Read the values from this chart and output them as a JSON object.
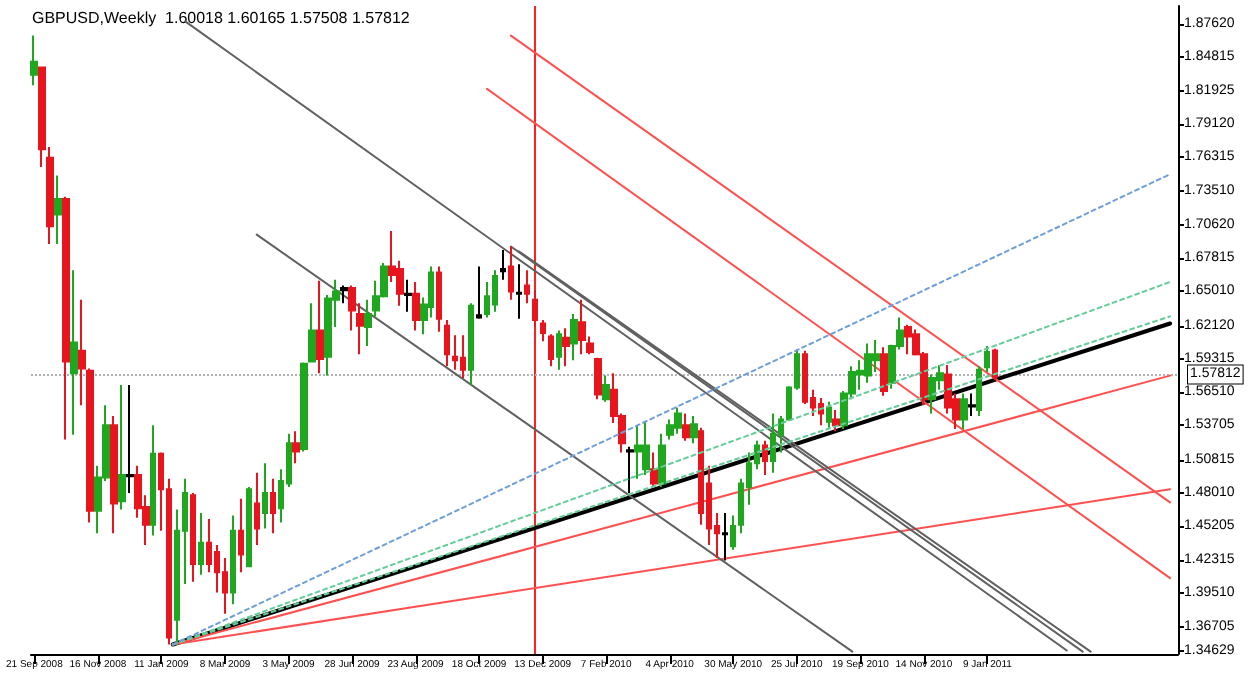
{
  "chart_data": {
    "type": "candlestick",
    "title": "GBPUSD,Weekly  1.60018 1.60165 1.57508 1.57812",
    "xlim": [
      "2008-09-18",
      "2011-06-26"
    ],
    "xticks": [
      {
        "value": "2008-09-21",
        "label": "21 Sep 2008"
      },
      {
        "value": "2008-11-16",
        "label": "16 Nov 2008"
      },
      {
        "value": "2009-01-11",
        "label": "11 Jan 2009"
      },
      {
        "value": "2009-03-08",
        "label": "8 Mar 2009"
      },
      {
        "value": "2009-05-03",
        "label": "3 May 2009"
      },
      {
        "value": "2009-06-28",
        "label": "28 Jun 2009"
      },
      {
        "value": "2009-08-23",
        "label": "23 Aug 2009"
      },
      {
        "value": "2009-10-18",
        "label": "18 Oct 2009"
      },
      {
        "value": "2009-12-13",
        "label": "13 Dec 2009"
      },
      {
        "value": "2010-02-07",
        "label": "7 Feb 2010"
      },
      {
        "value": "2010-04-04",
        "label": "4 Apr 2010"
      },
      {
        "value": "2010-05-30",
        "label": "30 May 2010"
      },
      {
        "value": "2010-07-25",
        "label": "25 Jul 2010"
      },
      {
        "value": "2010-09-19",
        "label": "19 Sep 2010"
      },
      {
        "value": "2010-11-14",
        "label": "14 Nov 2010"
      },
      {
        "value": "2011-01-09",
        "label": "9 Jan 2011"
      }
    ],
    "ylim": [
      1.344,
      1.891
    ],
    "yticks": [
      {
        "value": 1.34629,
        "label": "1.34629"
      },
      {
        "value": 1.36705,
        "label": "1.36705"
      },
      {
        "value": 1.3951,
        "label": "1.39510"
      },
      {
        "value": 1.42315,
        "label": "1.42315"
      },
      {
        "value": 1.45205,
        "label": "1.45205"
      },
      {
        "value": 1.4801,
        "label": "1.48010"
      },
      {
        "value": 1.50815,
        "label": "1.50815"
      },
      {
        "value": 1.53705,
        "label": "1.53705"
      },
      {
        "value": 1.5651,
        "label": "1.56510"
      },
      {
        "value": 1.59315,
        "label": "1.59315"
      },
      {
        "value": 1.6212,
        "label": "1.62120"
      },
      {
        "value": 1.6501,
        "label": "1.65010"
      },
      {
        "value": 1.67815,
        "label": "1.67815"
      },
      {
        "value": 1.7062,
        "label": "1.70620"
      },
      {
        "value": 1.7351,
        "label": "1.73510"
      },
      {
        "value": 1.76315,
        "label": "1.76315"
      },
      {
        "value": 1.7912,
        "label": "1.79120"
      },
      {
        "value": 1.81925,
        "label": "1.81925"
      },
      {
        "value": 1.84815,
        "label": "1.84815"
      },
      {
        "value": 1.8762,
        "label": "1.87620"
      }
    ],
    "grid": false,
    "marker": "none",
    "ref_lines": [
      {
        "axis": "x",
        "value": "2009-12-06",
        "color": "#ff2020",
        "line_style": "solid"
      },
      {
        "axis": "y",
        "value": 1.57812,
        "label": "1.57812",
        "color": "#b0b0b0",
        "line_style": "dotted"
      }
    ],
    "series": [
      {
        "x": [
          "2008-09-21",
          "2008-09-28",
          "2008-10-05",
          "2008-10-12",
          "2008-10-19",
          "2008-10-26",
          "2008-11-02",
          "2008-11-09",
          "2008-11-16",
          "2008-11-23",
          "2008-11-30",
          "2008-12-07",
          "2008-12-14",
          "2008-12-21",
          "2008-12-28",
          "2009-01-04",
          "2009-01-11",
          "2009-01-18",
          "2009-01-25",
          "2009-02-01",
          "2009-02-08",
          "2009-02-15",
          "2009-02-22",
          "2009-03-01",
          "2009-03-08",
          "2009-03-15",
          "2009-03-22",
          "2009-03-29",
          "2009-04-05",
          "2009-04-12",
          "2009-04-19",
          "2009-04-26",
          "2009-05-03",
          "2009-05-10",
          "2009-05-17",
          "2009-05-24",
          "2009-05-31",
          "2009-06-07",
          "2009-06-14",
          "2009-06-21",
          "2009-06-28",
          "2009-07-05",
          "2009-07-12",
          "2009-07-19",
          "2009-07-26",
          "2009-08-02",
          "2009-08-09",
          "2009-08-16",
          "2009-08-23",
          "2009-08-30",
          "2009-09-06",
          "2009-09-13",
          "2009-09-20",
          "2009-09-27",
          "2009-10-04",
          "2009-10-11",
          "2009-10-18",
          "2009-10-25",
          "2009-11-01",
          "2009-11-08",
          "2009-11-15",
          "2009-11-22",
          "2009-11-29",
          "2009-12-06",
          "2009-12-13",
          "2009-12-20",
          "2009-12-27",
          "2010-01-03",
          "2010-01-10",
          "2010-01-17",
          "2010-01-24",
          "2010-01-31",
          "2010-02-07",
          "2010-02-14",
          "2010-02-21",
          "2010-02-28",
          "2010-03-07",
          "2010-03-14",
          "2010-03-21",
          "2010-03-28",
          "2010-04-04",
          "2010-04-11",
          "2010-04-18",
          "2010-04-25",
          "2010-05-02",
          "2010-05-09",
          "2010-05-16",
          "2010-05-23",
          "2010-05-30",
          "2010-06-06",
          "2010-06-13",
          "2010-06-20",
          "2010-06-27",
          "2010-07-04",
          "2010-07-11",
          "2010-07-18",
          "2010-07-25",
          "2010-08-01",
          "2010-08-08",
          "2010-08-15",
          "2010-08-22",
          "2010-08-29",
          "2010-09-05",
          "2010-09-12",
          "2010-09-19",
          "2010-09-26",
          "2010-10-03",
          "2010-10-10",
          "2010-10-17",
          "2010-10-24",
          "2010-10-31",
          "2010-11-07",
          "2010-11-14",
          "2010-11-21",
          "2010-11-28",
          "2010-12-05",
          "2010-12-12",
          "2010-12-19",
          "2010-12-26",
          "2011-01-02",
          "2011-01-09",
          "2011-01-16"
        ],
        "ohlc": [
          [
            1.833,
            1.866,
            1.824,
            1.844
          ],
          [
            1.839,
            1.84,
            1.755,
            1.77
          ],
          [
            1.763,
            1.772,
            1.69,
            1.705
          ],
          [
            1.715,
            1.748,
            1.69,
            1.728
          ],
          [
            1.728,
            1.73,
            1.525,
            1.591
          ],
          [
            1.581,
            1.668,
            1.529,
            1.607
          ],
          [
            1.6,
            1.643,
            1.554,
            1.585
          ],
          [
            1.583,
            1.585,
            1.455,
            1.465
          ],
          [
            1.465,
            1.503,
            1.446,
            1.493
          ],
          [
            1.493,
            1.554,
            1.49,
            1.537
          ],
          [
            1.537,
            1.545,
            1.446,
            1.471
          ],
          [
            1.473,
            1.571,
            1.466,
            1.495
          ],
          [
            1.495,
            1.571,
            1.48,
            1.494
          ],
          [
            1.495,
            1.503,
            1.459,
            1.467
          ],
          [
            1.468,
            1.478,
            1.436,
            1.453
          ],
          [
            1.453,
            1.537,
            1.444,
            1.513
          ],
          [
            1.513,
            1.514,
            1.448,
            1.483
          ],
          [
            1.483,
            1.492,
            1.352,
            1.358
          ],
          [
            1.373,
            1.466,
            1.352,
            1.448
          ],
          [
            1.448,
            1.492,
            1.403,
            1.48
          ],
          [
            1.478,
            1.48,
            1.405,
            1.42
          ],
          [
            1.42,
            1.463,
            1.411,
            1.438
          ],
          [
            1.438,
            1.458,
            1.413,
            1.42
          ],
          [
            1.43,
            1.436,
            1.396,
            1.413
          ],
          [
            1.413,
            1.425,
            1.378,
            1.396
          ],
          [
            1.396,
            1.461,
            1.386,
            1.448
          ],
          [
            1.448,
            1.475,
            1.413,
            1.428
          ],
          [
            1.418,
            1.485,
            1.418,
            1.483
          ],
          [
            1.471,
            1.497,
            1.436,
            1.45
          ],
          [
            1.463,
            1.505,
            1.45,
            1.48
          ],
          [
            1.48,
            1.492,
            1.446,
            1.463
          ],
          [
            1.467,
            1.5,
            1.455,
            1.49
          ],
          [
            1.488,
            1.53,
            1.485,
            1.522
          ],
          [
            1.522,
            1.532,
            1.505,
            1.515
          ],
          [
            1.517,
            1.59,
            1.515,
            1.589
          ],
          [
            1.591,
            1.64,
            1.59,
            1.617
          ],
          [
            1.617,
            1.659,
            1.581,
            1.593
          ],
          [
            1.595,
            1.647,
            1.579,
            1.644
          ],
          [
            1.643,
            1.66,
            1.62,
            1.65
          ],
          [
            1.651,
            1.655,
            1.64,
            1.653
          ],
          [
            1.653,
            1.655,
            1.617,
            1.634
          ],
          [
            1.631,
            1.64,
            1.597,
            1.621
          ],
          [
            1.62,
            1.643,
            1.604,
            1.631
          ],
          [
            1.634,
            1.659,
            1.629,
            1.646
          ],
          [
            1.646,
            1.674,
            1.645,
            1.671
          ],
          [
            1.671,
            1.701,
            1.658,
            1.664
          ],
          [
            1.669,
            1.676,
            1.638,
            1.648
          ],
          [
            1.647,
            1.66,
            1.633,
            1.648
          ],
          [
            1.648,
            1.658,
            1.617,
            1.626
          ],
          [
            1.626,
            1.645,
            1.614,
            1.639
          ],
          [
            1.637,
            1.671,
            1.628,
            1.666
          ],
          [
            1.666,
            1.671,
            1.616,
            1.627
          ],
          [
            1.621,
            1.626,
            1.587,
            1.597
          ],
          [
            1.595,
            1.613,
            1.584,
            1.592
          ],
          [
            1.594,
            1.613,
            1.577,
            1.584
          ],
          [
            1.584,
            1.64,
            1.571,
            1.638
          ],
          [
            1.63,
            1.671,
            1.627,
            1.628
          ],
          [
            1.631,
            1.658,
            1.628,
            1.646
          ],
          [
            1.639,
            1.668,
            1.633,
            1.663
          ],
          [
            1.667,
            1.685,
            1.66,
            1.669
          ],
          [
            1.671,
            1.688,
            1.643,
            1.65
          ],
          [
            1.648,
            1.673,
            1.627,
            1.649
          ],
          [
            1.655,
            1.668,
            1.64,
            1.648
          ],
          [
            1.643,
            1.651,
            1.62,
            1.626
          ],
          [
            1.623,
            1.626,
            1.608,
            1.615
          ],
          [
            1.612,
            1.614,
            1.587,
            1.593
          ],
          [
            1.595,
            1.617,
            1.584,
            1.614
          ],
          [
            1.611,
            1.619,
            1.587,
            1.604
          ],
          [
            1.606,
            1.631,
            1.592,
            1.626
          ],
          [
            1.624,
            1.643,
            1.597,
            1.609
          ],
          [
            1.606,
            1.612,
            1.597,
            1.599
          ],
          [
            1.593,
            1.594,
            1.559,
            1.563
          ],
          [
            1.559,
            1.579,
            1.557,
            1.571
          ],
          [
            1.567,
            1.581,
            1.539,
            1.545
          ],
          [
            1.545,
            1.547,
            1.514,
            1.522
          ],
          [
            1.516,
            1.519,
            1.48,
            1.515
          ],
          [
            1.515,
            1.537,
            1.492,
            1.52
          ],
          [
            1.5,
            1.54,
            1.495,
            1.52
          ],
          [
            1.5,
            1.514,
            1.485,
            1.488
          ],
          [
            1.488,
            1.53,
            1.485,
            1.52
          ],
          [
            1.529,
            1.542,
            1.525,
            1.537
          ],
          [
            1.535,
            1.552,
            1.53,
            1.547
          ],
          [
            1.537,
            1.547,
            1.524,
            1.527
          ],
          [
            1.527,
            1.545,
            1.522,
            1.538
          ],
          [
            1.532,
            1.535,
            1.453,
            1.463
          ],
          [
            1.488,
            1.503,
            1.436,
            1.45
          ],
          [
            1.452,
            1.463,
            1.425,
            1.446
          ],
          [
            1.446,
            1.463,
            1.423,
            1.445
          ],
          [
            1.435,
            1.461,
            1.432,
            1.452
          ],
          [
            1.453,
            1.492,
            1.446,
            1.488
          ],
          [
            1.485,
            1.514,
            1.47,
            1.505
          ],
          [
            1.505,
            1.524,
            1.5,
            1.52
          ],
          [
            1.52,
            1.524,
            1.495,
            1.507
          ],
          [
            1.507,
            1.547,
            1.497,
            1.53
          ],
          [
            1.529,
            1.545,
            1.514,
            1.542
          ],
          [
            1.542,
            1.57,
            1.541,
            1.569
          ],
          [
            1.569,
            1.601,
            1.567,
            1.597
          ],
          [
            1.597,
            1.6,
            1.555,
            1.557
          ],
          [
            1.56,
            1.567,
            1.545,
            1.552
          ],
          [
            1.555,
            1.56,
            1.537,
            1.547
          ],
          [
            1.54,
            1.557,
            1.535,
            1.552
          ],
          [
            1.542,
            1.55,
            1.532,
            1.537
          ],
          [
            1.537,
            1.566,
            1.534,
            1.564
          ],
          [
            1.564,
            1.587,
            1.559,
            1.582
          ],
          [
            1.58,
            1.592,
            1.567,
            1.583
          ],
          [
            1.579,
            1.606,
            1.573,
            1.597
          ],
          [
            1.592,
            1.609,
            1.582,
            1.597
          ],
          [
            1.597,
            1.603,
            1.562,
            1.566
          ],
          [
            1.573,
            1.605,
            1.568,
            1.604
          ],
          [
            1.604,
            1.628,
            1.601,
            1.617
          ],
          [
            1.62,
            1.622,
            1.597,
            1.612
          ],
          [
            1.614,
            1.618,
            1.596,
            1.597
          ],
          [
            1.597,
            1.599,
            1.554,
            1.559
          ],
          [
            1.559,
            1.58,
            1.547,
            1.577
          ],
          [
            1.575,
            1.588,
            1.567,
            1.581
          ],
          [
            1.58,
            1.588,
            1.547,
            1.552
          ],
          [
            1.559,
            1.564,
            1.534,
            1.542
          ],
          [
            1.542,
            1.564,
            1.534,
            1.559
          ],
          [
            1.553,
            1.564,
            1.545,
            1.554
          ],
          [
            1.55,
            1.587,
            1.545,
            1.584
          ],
          [
            1.586,
            1.604,
            1.582,
            1.599
          ],
          [
            1.60018,
            1.60165,
            1.57508,
            1.57812
          ]
        ],
        "colors": [
          "#1fa81f",
          "#e8141e",
          "#e8141e",
          "#1fa81f",
          "#e8141e",
          "#1fa81f",
          "#e8141e",
          "#e8141e",
          "#1fa81f",
          "#1fa81f",
          "#e8141e",
          "#1fa81f",
          "#000000",
          "#e8141e",
          "#e8141e",
          "#1fa81f",
          "#e8141e",
          "#e8141e",
          "#1fa81f",
          "#1fa81f",
          "#e8141e",
          "#1fa81f",
          "#e8141e",
          "#e8141e",
          "#e8141e",
          "#1fa81f",
          "#e8141e",
          "#1fa81f",
          "#e8141e",
          "#1fa81f",
          "#e8141e",
          "#1fa81f",
          "#1fa81f",
          "#e8141e",
          "#1fa81f",
          "#1fa81f",
          "#e8141e",
          "#1fa81f",
          "#1fa81f",
          "#000000",
          "#e8141e",
          "#e8141e",
          "#1fa81f",
          "#1fa81f",
          "#1fa81f",
          "#e8141e",
          "#e8141e",
          "#000000",
          "#e8141e",
          "#1fa81f",
          "#1fa81f",
          "#e8141e",
          "#e8141e",
          "#e8141e",
          "#e8141e",
          "#1fa81f",
          "#000000",
          "#1fa81f",
          "#1fa81f",
          "#000000",
          "#e8141e",
          "#000000",
          "#e8141e",
          "#e8141e",
          "#e8141e",
          "#e8141e",
          "#1fa81f",
          "#e8141e",
          "#1fa81f",
          "#e8141e",
          "#e8141e",
          "#e8141e",
          "#1fa81f",
          "#e8141e",
          "#e8141e",
          "#000000",
          "#1fa81f",
          "#1fa81f",
          "#e8141e",
          "#1fa81f",
          "#1fa81f",
          "#1fa81f",
          "#e8141e",
          "#1fa81f",
          "#e8141e",
          "#e8141e",
          "#e8141e",
          "#000000",
          "#1fa81f",
          "#1fa81f",
          "#1fa81f",
          "#1fa81f",
          "#e8141e",
          "#1fa81f",
          "#1fa81f",
          "#1fa81f",
          "#1fa81f",
          "#e8141e",
          "#e8141e",
          "#e8141e",
          "#1fa81f",
          "#e8141e",
          "#1fa81f",
          "#1fa81f",
          "#1fa81f",
          "#1fa81f",
          "#1fa81f",
          "#e8141e",
          "#1fa81f",
          "#1fa81f",
          "#e8141e",
          "#e8141e",
          "#e8141e",
          "#1fa81f",
          "#1fa81f",
          "#e8141e",
          "#e8141e",
          "#1fa81f",
          "#000000",
          "#1fa81f",
          "#1fa81f",
          "#e8141e"
        ]
      },
      {
        "type": "line",
        "x": [
          "2009-01-21",
          "2011-06-19"
        ],
        "values": [
          1.352,
          1.749
        ],
        "color": "#6f9fd8",
        "line_style": "dashed"
      },
      {
        "type": "line",
        "x": [
          "2009-01-21",
          "2011-06-19"
        ],
        "values": [
          1.352,
          1.658
        ],
        "color": "#66cc99",
        "line_style": "dashed"
      },
      {
        "type": "line",
        "x": [
          "2009-01-21",
          "2011-06-19"
        ],
        "values": [
          1.352,
          1.629
        ],
        "color": "#66cc99",
        "line_style": "dashed"
      },
      {
        "type": "line",
        "x": [
          "2009-01-21",
          "2011-06-19"
        ],
        "values": [
          1.352,
          1.623
        ],
        "color": "#000000",
        "line_style": "solid"
      },
      {
        "type": "line",
        "x": [
          "2009-01-21",
          "2011-06-19"
        ],
        "values": [
          1.352,
          1.579
        ],
        "color": "#ff5050",
        "line_style": "solid"
      },
      {
        "type": "line",
        "x": [
          "2009-01-21",
          "2011-06-19"
        ],
        "values": [
          1.352,
          1.483
        ],
        "color": "#ff5050",
        "line_style": "solid"
      },
      {
        "type": "line",
        "x": [
          "2009-02-01",
          "2011-03-20"
        ],
        "values": [
          1.878,
          1.347
        ],
        "color": "#606060",
        "line_style": "solid"
      },
      {
        "type": "line",
        "x": [
          "2009-11-15",
          "2011-04-03"
        ],
        "values": [
          1.688,
          1.346
        ],
        "color": "#606060",
        "line_style": "solid"
      },
      {
        "type": "line",
        "x": [
          "2009-11-22",
          "2011-04-10"
        ],
        "values": [
          1.684,
          1.346
        ],
        "color": "#606060",
        "line_style": "solid"
      },
      {
        "type": "line",
        "x": [
          "2009-04-05",
          "2010-09-12"
        ],
        "values": [
          1.698,
          1.346
        ],
        "color": "#606060",
        "line_style": "solid"
      },
      {
        "type": "line",
        "x": [
          "2009-11-15",
          "2011-06-19"
        ],
        "values": [
          1.866,
          1.472
        ],
        "color": "#ff5050",
        "line_style": "solid"
      },
      {
        "type": "line",
        "x": [
          "2009-10-25",
          "2011-06-19"
        ],
        "values": [
          1.821,
          1.408
        ],
        "color": "#ff5050",
        "line_style": "solid"
      }
    ]
  }
}
